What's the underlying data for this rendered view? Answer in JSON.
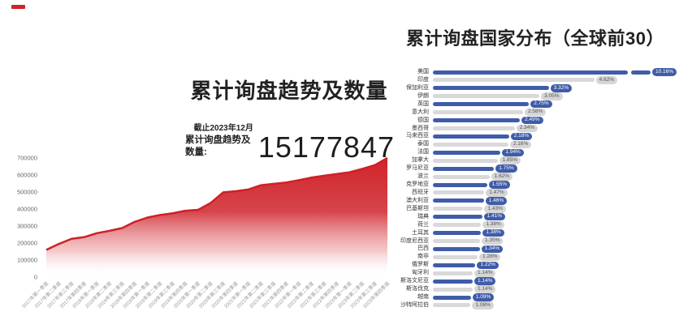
{
  "page": {
    "background": "#ffffff",
    "accent_color": "#d0232a"
  },
  "left_chart": {
    "title": "累计询盘趋势及数量",
    "asof_label": "截止2023年12月",
    "stat_label": "累计询盘趋势及数量:",
    "stat_value": "15177847"
  },
  "right_chart": {
    "title": "累计询盘国家分布（全球前30）"
  },
  "chart_data": [
    {
      "type": "area",
      "title": "累计询盘趋势及数量",
      "xlabel": "",
      "ylabel": "",
      "ylim": [
        0,
        700000
      ],
      "yticks": [
        0,
        100000,
        200000,
        300000,
        400000,
        500000,
        600000,
        700000
      ],
      "grid": false,
      "legend": false,
      "line_color": "#cd2127",
      "area_top_color": "#d0232a",
      "area_bottom_color": "#ffffff",
      "categories": [
        "2017年第一季度",
        "2017年第二季度",
        "2017年第三季度",
        "2017年第四季度",
        "2018年第一季度",
        "2018年第二季度",
        "2018年第三季度",
        "2018年第四季度",
        "2019年第一季度",
        "2019年第二季度",
        "2019年第三季度",
        "2019年第四季度",
        "2020年第一季度",
        "2020年第二季度",
        "2020年第三季度",
        "2020年第四季度",
        "2021年第一季度",
        "2021年第二季度",
        "2021年第三季度",
        "2021年第四季度",
        "2022年第一季度",
        "2022年第二季度",
        "2022年第三季度",
        "2022年第四季度",
        "2023年第一季度",
        "2023年第二季度",
        "2023年第三季度",
        "2023年第四季度"
      ],
      "values": [
        160000,
        195000,
        225000,
        235000,
        258000,
        272000,
        288000,
        325000,
        350000,
        365000,
        375000,
        390000,
        395000,
        435000,
        498000,
        505000,
        515000,
        540000,
        548000,
        556000,
        570000,
        585000,
        596000,
        606000,
        616000,
        636000,
        658000,
        700000
      ]
    },
    {
      "type": "bar",
      "orientation": "horizontal",
      "title": "累计询盘国家分布（全球前30）",
      "unit": "%",
      "bar_color_odd": "#3f5ca8",
      "bar_color_even": "#d9d9d9",
      "broken_bar_index": 0,
      "categories": [
        "美国",
        "印度",
        "保加利亚",
        "伊朗",
        "英国",
        "意大利",
        "德国",
        "墨西哥",
        "马来西亚",
        "泰国",
        "法国",
        "加拿大",
        "罗马尼亚",
        "波兰",
        "克罗地亚",
        "西班牙",
        "澳大利亚",
        "巴基斯坦",
        "瑞典",
        "荷兰",
        "土耳其",
        "印度尼西亚",
        "巴西",
        "南非",
        "俄罗斯",
        "匈牙利",
        "斯洛文尼亚",
        "斯洛伐克",
        "越南",
        "沙特阿拉伯"
      ],
      "values": [
        10.16,
        4.62,
        3.32,
        3.05,
        2.75,
        2.58,
        2.49,
        2.34,
        2.18,
        2.16,
        1.94,
        1.85,
        1.75,
        1.62,
        1.55,
        1.47,
        1.46,
        1.43,
        1.41,
        1.38,
        1.38,
        1.35,
        1.34,
        1.28,
        1.22,
        1.14,
        1.14,
        1.14,
        1.09,
        1.08
      ]
    }
  ]
}
